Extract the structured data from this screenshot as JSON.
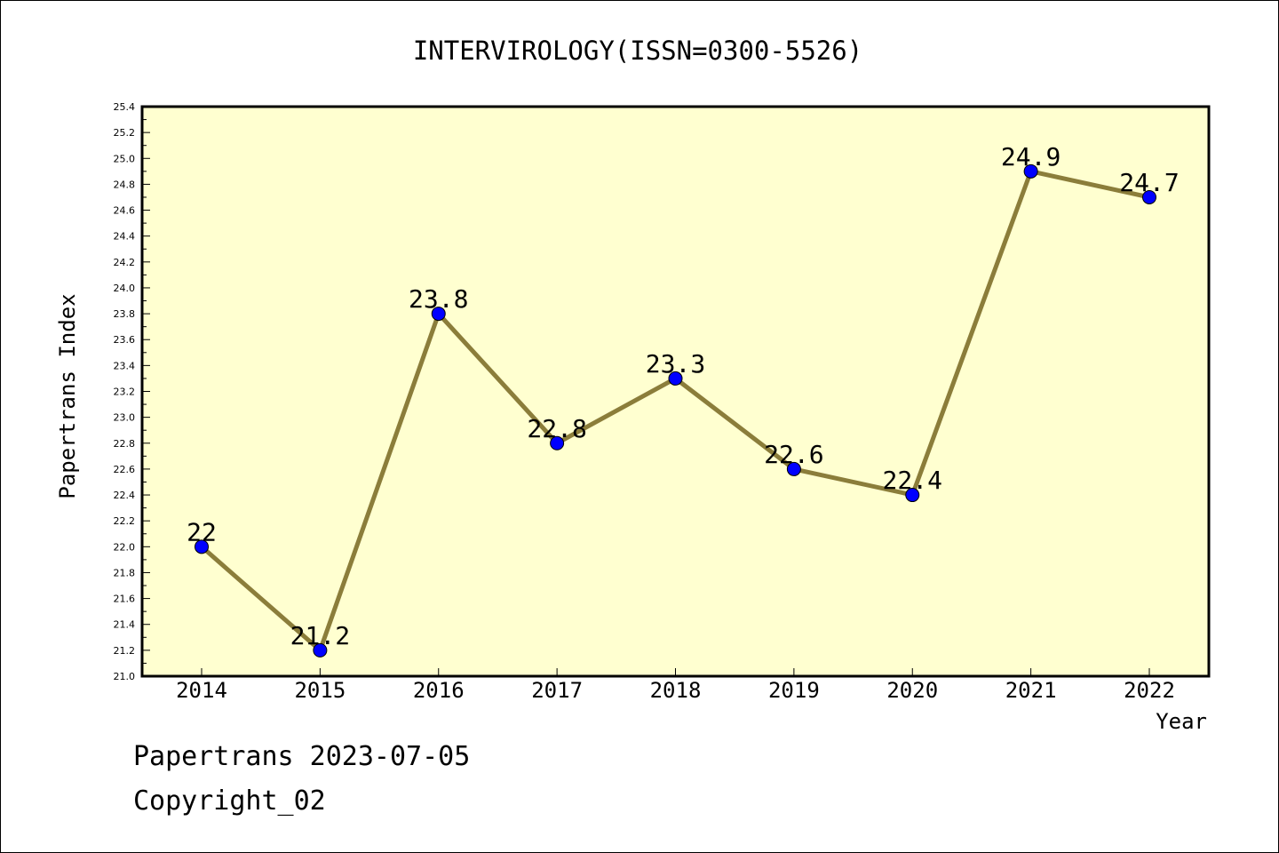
{
  "chart_data": {
    "type": "line",
    "title": "INTERVIROLOGY(ISSN=0300-5526)",
    "xlabel": "Year",
    "ylabel": "Papertrans Index",
    "categories": [
      "2014",
      "2015",
      "2016",
      "2017",
      "2018",
      "2019",
      "2020",
      "2021",
      "2022"
    ],
    "values": [
      22.0,
      21.2,
      23.8,
      22.8,
      23.3,
      22.6,
      22.4,
      24.9,
      24.7
    ],
    "data_labels": [
      "22",
      "21.2",
      "23.8",
      "22.8",
      "23.3",
      "22.6",
      "22.4",
      "24.9",
      "24.7"
    ],
    "ylim": [
      21.0,
      25.4
    ],
    "y_ticks": [
      "21.0",
      "21.2",
      "21.4",
      "21.6",
      "21.8",
      "22.0",
      "22.2",
      "22.4",
      "22.6",
      "22.8",
      "23.0",
      "23.2",
      "23.4",
      "23.6",
      "23.8",
      "24.0",
      "24.2",
      "24.4",
      "24.6",
      "24.8",
      "25.0",
      "25.2",
      "25.4"
    ],
    "grid": false,
    "legend": "none",
    "colors": {
      "plot_background": "#ffffd0",
      "line": "#8b7d3a",
      "marker": "#0000ff",
      "axis": "#000000"
    }
  },
  "footer": {
    "stamp": "Papertrans 2023-07-05",
    "copyright": "Copyright_02"
  }
}
